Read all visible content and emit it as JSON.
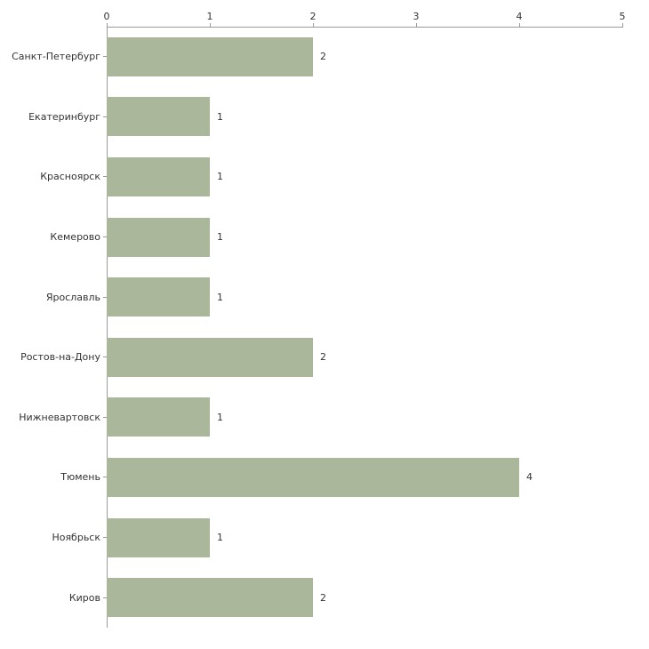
{
  "chart_data": {
    "type": "bar",
    "orientation": "horizontal",
    "title": "",
    "xlabel": "",
    "ylabel": "",
    "categories": [
      "Санкт-Петербург",
      "Екатеринбург",
      "Красноярск",
      "Кемерово",
      "Ярославль",
      "Ростов-на-Дону",
      "Нижневартовск",
      "Тюмень",
      "Ноябрьск",
      "Киров"
    ],
    "values": [
      2,
      1,
      1,
      1,
      1,
      2,
      1,
      4,
      1,
      2
    ],
    "x_ticks": [
      0,
      1,
      2,
      3,
      4,
      5
    ],
    "xlim": [
      0,
      5
    ],
    "grid": false,
    "legend": false,
    "tick_position": "top",
    "bar_color": "#abb79a",
    "axis_color": "#9a9a9a",
    "text_color": "#333333",
    "background_color": "#ffffff"
  }
}
